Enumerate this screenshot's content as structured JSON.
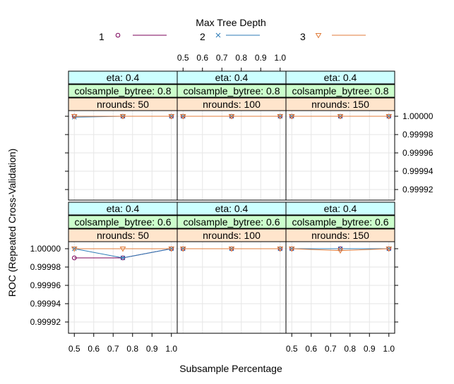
{
  "chart_data": {
    "type": "line",
    "legend": {
      "title": "Max Tree Depth",
      "placement": "top",
      "entries": [
        {
          "label": "1",
          "color": "#7b0059",
          "marker": "circle"
        },
        {
          "label": "2",
          "color": "#2c7bb6",
          "marker": "x"
        },
        {
          "label": "3",
          "color": "#e07b39",
          "marker": "triangle-down"
        }
      ]
    },
    "xlabel": "Subsample Percentage",
    "ylabel": "ROC (Repeated Cross-Validation)",
    "xticks": [
      "0.5",
      "0.6",
      "0.7",
      "0.8",
      "0.9",
      "1.0"
    ],
    "yticks": [
      "1.00000",
      "0.99998",
      "0.99996",
      "0.99994",
      "0.99992"
    ],
    "xlim": [
      0.47,
      1.03
    ],
    "ylim": [
      0.9999,
      1.000005
    ],
    "x": [
      0.5,
      0.75,
      1.0
    ],
    "strip_colors": {
      "eta": "#ccffff",
      "colsample": "#ccffcc",
      "nrounds": "#ffe5cc"
    },
    "panels": [
      {
        "eta": "eta: 0.4",
        "colsample": "colsample_bytree: 0.8",
        "nrounds": "nrounds:  50",
        "series": [
          [
            1.0,
            1.0,
            1.0
          ],
          [
            0.999999,
            1.0,
            1.0
          ],
          [
            1.0,
            1.0,
            1.0
          ]
        ]
      },
      {
        "eta": "eta: 0.4",
        "colsample": "colsample_bytree: 0.8",
        "nrounds": "nrounds: 100",
        "series": [
          [
            1.0,
            1.0,
            1.0
          ],
          [
            1.0,
            1.0,
            1.0
          ],
          [
            1.0,
            1.0,
            1.0
          ]
        ]
      },
      {
        "eta": "eta: 0.4",
        "colsample": "colsample_bytree: 0.8",
        "nrounds": "nrounds: 150",
        "series": [
          [
            1.0,
            1.0,
            1.0
          ],
          [
            1.0,
            1.0,
            1.0
          ],
          [
            1.0,
            1.0,
            1.0
          ]
        ]
      },
      {
        "eta": "eta: 0.4",
        "colsample": "colsample_bytree: 0.6",
        "nrounds": "nrounds:  50",
        "series": [
          [
            0.99999,
            0.99999,
            1.0
          ],
          [
            1.0,
            0.99999,
            1.0
          ],
          [
            1.0,
            1.0,
            1.0
          ]
        ]
      },
      {
        "eta": "eta: 0.4",
        "colsample": "colsample_bytree: 0.6",
        "nrounds": "nrounds: 100",
        "series": [
          [
            1.0,
            1.0,
            1.0
          ],
          [
            1.0,
            1.0,
            1.0
          ],
          [
            1.0,
            1.0,
            1.0
          ]
        ]
      },
      {
        "eta": "eta: 0.4",
        "colsample": "colsample_bytree: 0.6",
        "nrounds": "nrounds: 150",
        "series": [
          [
            1.0,
            1.0,
            1.0
          ],
          [
            1.0,
            1.0,
            1.0
          ],
          [
            1.0,
            0.999998,
            1.0
          ]
        ]
      }
    ]
  }
}
